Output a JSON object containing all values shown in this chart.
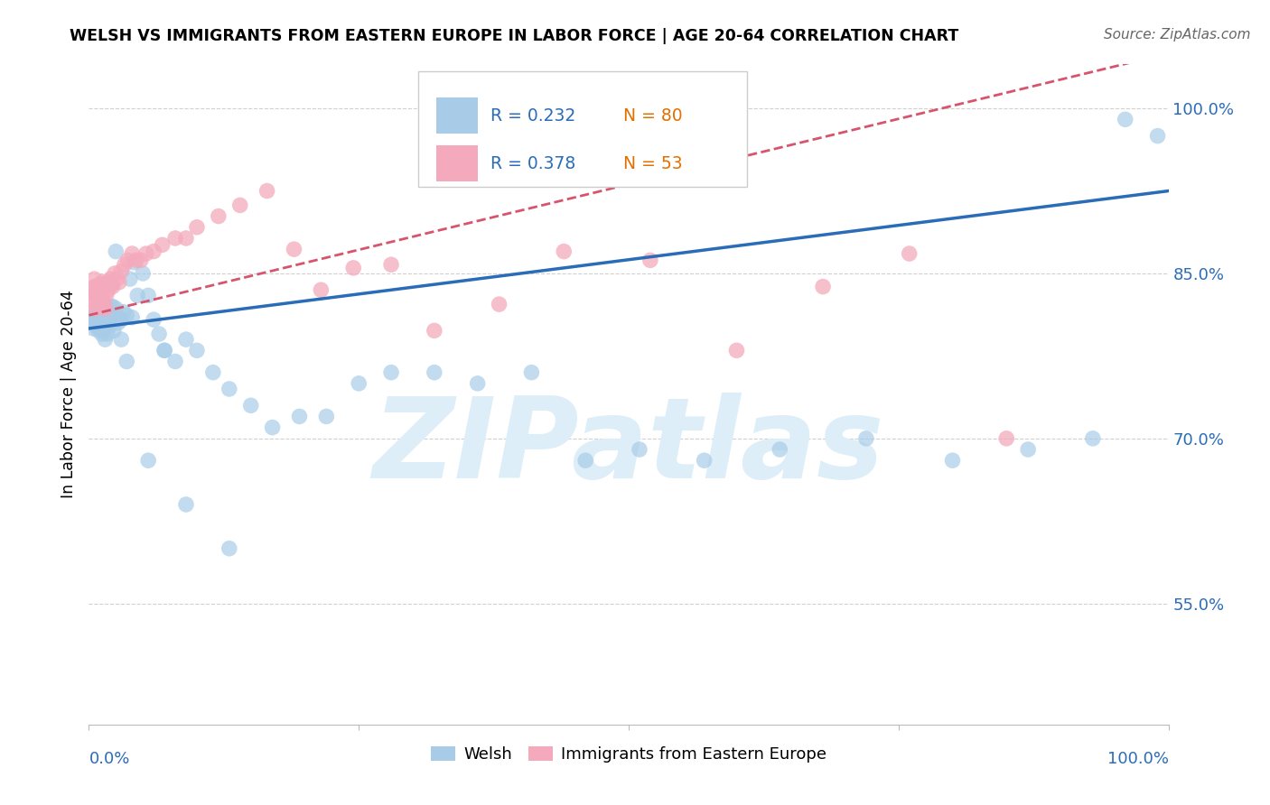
{
  "title": "WELSH VS IMMIGRANTS FROM EASTERN EUROPE IN LABOR FORCE | AGE 20-64 CORRELATION CHART",
  "source": "Source: ZipAtlas.com",
  "ylabel": "In Labor Force | Age 20-64",
  "ytick_labels": [
    "100.0%",
    "85.0%",
    "70.0%",
    "55.0%"
  ],
  "ytick_values": [
    1.0,
    0.85,
    0.7,
    0.55
  ],
  "xtick_labels": [
    "0.0%",
    "100.0%"
  ],
  "xlim": [
    0.0,
    1.0
  ],
  "ylim": [
    0.44,
    1.04
  ],
  "legend_blue_R": "R = 0.232",
  "legend_blue_N": "N = 80",
  "legend_pink_R": "R = 0.378",
  "legend_pink_N": "N = 53",
  "legend_label_blue": "Welsh",
  "legend_label_pink": "Immigrants from Eastern Europe",
  "blue_color": "#a8cce8",
  "pink_color": "#f4aabc",
  "line_blue_color": "#2b6cb8",
  "line_pink_color": "#d6546e",
  "watermark_text": "ZIPatlas",
  "watermark_color": "#ddeef8",
  "background_color": "#ffffff",
  "grid_color": "#d0d0d0",
  "title_color": "#000000",
  "source_color": "#666666",
  "axis_label_color": "#000000",
  "tick_color": "#2b6cb8",
  "blue_line_x": [
    0.0,
    1.0
  ],
  "blue_line_y": [
    0.8,
    0.925
  ],
  "pink_line_x": [
    0.0,
    1.0
  ],
  "pink_line_y": [
    0.812,
    1.05
  ],
  "blue_scatter_x": [
    0.003,
    0.004,
    0.004,
    0.005,
    0.005,
    0.006,
    0.006,
    0.007,
    0.007,
    0.008,
    0.008,
    0.009,
    0.009,
    0.01,
    0.01,
    0.011,
    0.011,
    0.012,
    0.012,
    0.013,
    0.013,
    0.014,
    0.015,
    0.015,
    0.016,
    0.017,
    0.018,
    0.019,
    0.02,
    0.021,
    0.022,
    0.023,
    0.025,
    0.027,
    0.028,
    0.03,
    0.032,
    0.035,
    0.038,
    0.042,
    0.045,
    0.05,
    0.055,
    0.06,
    0.065,
    0.07,
    0.08,
    0.09,
    0.1,
    0.115,
    0.13,
    0.15,
    0.17,
    0.195,
    0.22,
    0.25,
    0.28,
    0.32,
    0.36,
    0.41,
    0.46,
    0.51,
    0.57,
    0.64,
    0.72,
    0.8,
    0.87,
    0.93,
    0.96,
    0.99,
    0.015,
    0.02,
    0.025,
    0.03,
    0.035,
    0.04,
    0.055,
    0.07,
    0.09,
    0.13
  ],
  "blue_scatter_y": [
    0.808,
    0.81,
    0.8,
    0.812,
    0.805,
    0.815,
    0.808,
    0.812,
    0.802,
    0.808,
    0.815,
    0.805,
    0.798,
    0.81,
    0.8,
    0.812,
    0.82,
    0.805,
    0.795,
    0.808,
    0.798,
    0.81,
    0.815,
    0.82,
    0.808,
    0.795,
    0.81,
    0.802,
    0.82,
    0.812,
    0.82,
    0.798,
    0.818,
    0.805,
    0.81,
    0.808,
    0.815,
    0.812,
    0.845,
    0.86,
    0.83,
    0.85,
    0.83,
    0.808,
    0.795,
    0.78,
    0.77,
    0.79,
    0.78,
    0.76,
    0.745,
    0.73,
    0.71,
    0.72,
    0.72,
    0.75,
    0.76,
    0.76,
    0.75,
    0.76,
    0.68,
    0.69,
    0.68,
    0.69,
    0.7,
    0.68,
    0.69,
    0.7,
    0.99,
    0.975,
    0.79,
    0.84,
    0.87,
    0.79,
    0.77,
    0.81,
    0.68,
    0.78,
    0.64,
    0.6
  ],
  "pink_scatter_x": [
    0.003,
    0.004,
    0.005,
    0.005,
    0.006,
    0.006,
    0.007,
    0.007,
    0.008,
    0.009,
    0.01,
    0.01,
    0.011,
    0.012,
    0.013,
    0.014,
    0.015,
    0.016,
    0.017,
    0.018,
    0.02,
    0.021,
    0.022,
    0.024,
    0.026,
    0.028,
    0.03,
    0.033,
    0.036,
    0.04,
    0.044,
    0.048,
    0.053,
    0.06,
    0.068,
    0.08,
    0.09,
    0.1,
    0.12,
    0.14,
    0.165,
    0.19,
    0.215,
    0.245,
    0.28,
    0.32,
    0.38,
    0.44,
    0.52,
    0.6,
    0.68,
    0.76,
    0.85
  ],
  "pink_scatter_y": [
    0.828,
    0.832,
    0.838,
    0.845,
    0.822,
    0.818,
    0.83,
    0.838,
    0.828,
    0.822,
    0.84,
    0.832,
    0.828,
    0.842,
    0.828,
    0.822,
    0.818,
    0.83,
    0.842,
    0.835,
    0.845,
    0.84,
    0.838,
    0.85,
    0.845,
    0.842,
    0.852,
    0.858,
    0.862,
    0.868,
    0.862,
    0.862,
    0.868,
    0.87,
    0.876,
    0.882,
    0.882,
    0.892,
    0.902,
    0.912,
    0.925,
    0.872,
    0.835,
    0.855,
    0.858,
    0.798,
    0.822,
    0.87,
    0.862,
    0.78,
    0.838,
    0.868,
    0.7
  ]
}
